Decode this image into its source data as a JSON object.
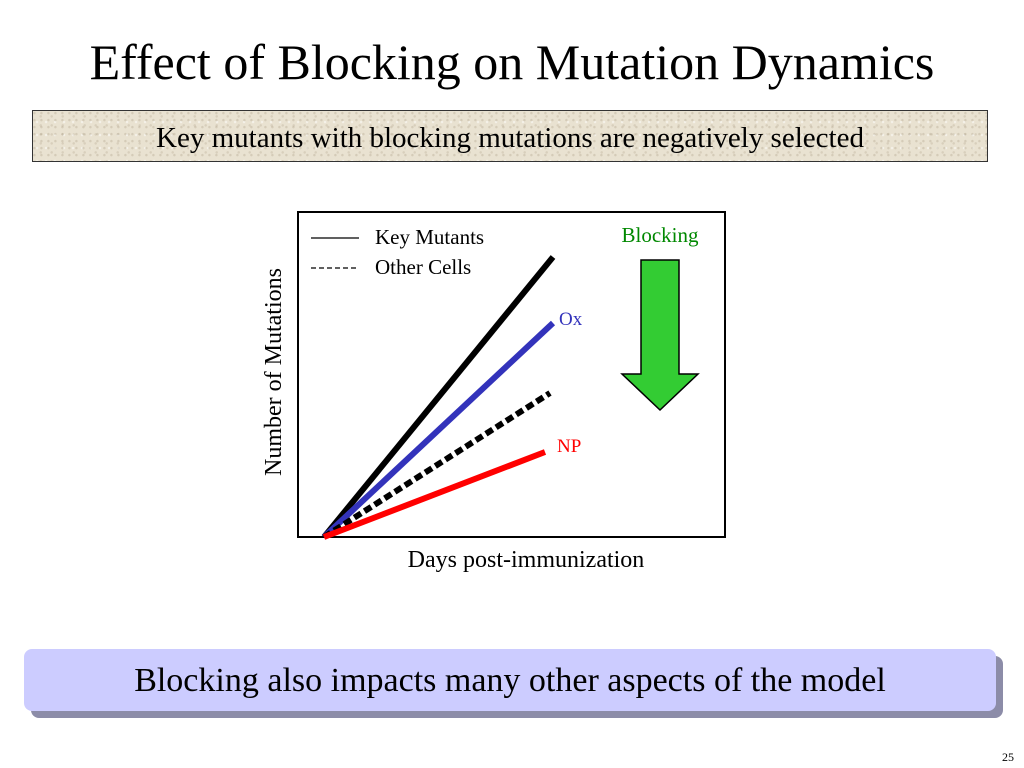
{
  "slide": {
    "title": "Effect of Blocking on Mutation Dynamics",
    "subtitle": "Key mutants with blocking mutations are negatively selected",
    "bottom_banner": "Blocking also impacts many other aspects of the model",
    "page_number": "25"
  },
  "diagram": {
    "ylabel": "Number of Mutations",
    "xlabel": "Days post-immunization",
    "legend": [
      {
        "symbol": "——",
        "label": "Key Mutants",
        "style": "solid"
      },
      {
        "symbol": "------",
        "label": "Other Cells",
        "style": "dashed"
      }
    ],
    "lines": [
      {
        "id": "key-mutants",
        "label": "",
        "color": "#000000",
        "style": "solid"
      },
      {
        "id": "ox",
        "label": "Ox",
        "color": "#3333bb",
        "style": "solid"
      },
      {
        "id": "other-cells",
        "label": "",
        "color": "#000000",
        "style": "dotted"
      },
      {
        "id": "np",
        "label": "NP",
        "color": "#ff0000",
        "style": "solid"
      }
    ],
    "arrow": {
      "label": "Blocking",
      "color": "#33cc33",
      "label_color": "#008800",
      "icon": "down-arrow-icon"
    }
  }
}
